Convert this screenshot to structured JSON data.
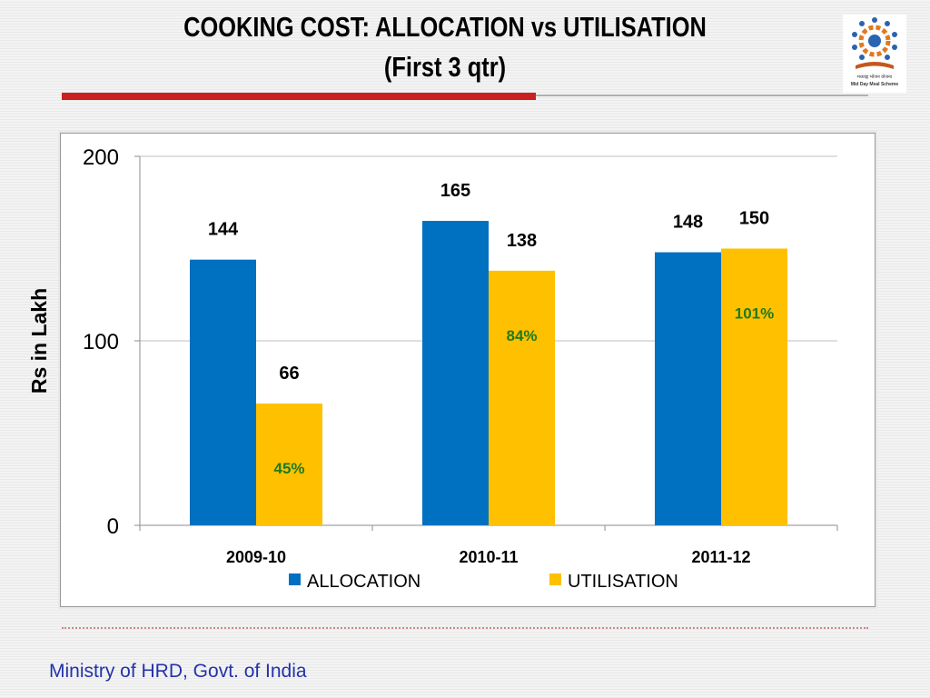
{
  "slide": {
    "title_line1": "COOKING COST: ALLOCATION vs UTILISATION",
    "title_line2": "(First 3 qtr)",
    "footer": "Ministry of HRD, Govt. of India",
    "logo_caption_hindi": "मध्याह्न भोजन योजना",
    "logo_caption_english": "Mid Day Meal Scheme"
  },
  "colors": {
    "allocation": "#0070c0",
    "utilisation": "#ffc000",
    "percent_label": "#1e7b1e",
    "title_rule": "#cc1f1f"
  },
  "chart_data": {
    "type": "bar",
    "title": "COOKING COST: ALLOCATION vs UTILISATION",
    "subtitle": "(First 3 qtr)",
    "categories": [
      "2009-10",
      "2010-11",
      "2011-12"
    ],
    "series": [
      {
        "name": "ALLOCATION",
        "values": [
          144,
          165,
          148
        ]
      },
      {
        "name": "UTILISATION",
        "values": [
          66,
          138,
          150
        ]
      }
    ],
    "utilisation_percent_labels": [
      "45%",
      "84%",
      "101%"
    ],
    "ylabel": "Rs in Lakh",
    "xlabel": "",
    "ylim": [
      0,
      200
    ],
    "yticks": [
      0,
      100,
      200
    ],
    "grid": true,
    "legend_position": "bottom"
  }
}
